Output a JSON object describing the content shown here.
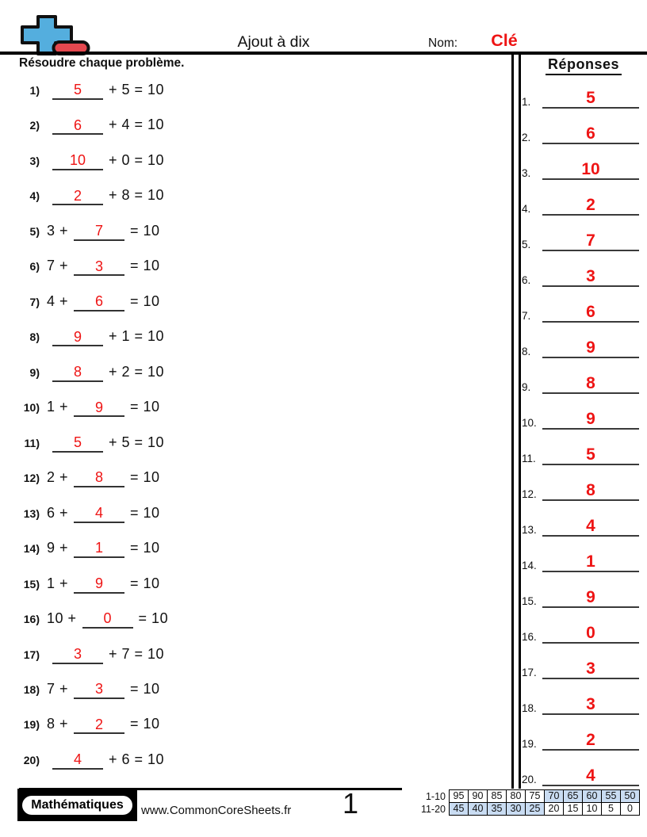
{
  "header": {
    "title": "Ajout à dix",
    "name_label": "Nom:",
    "name_value": "Clé"
  },
  "instruction": "Résoudre chaque problème.",
  "answers_header": "Réponses",
  "problems": [
    {
      "label": "1)",
      "lead": "",
      "answer": "5",
      "tail": "+ 5 = 10"
    },
    {
      "label": "2)",
      "lead": "",
      "answer": "6",
      "tail": "+ 4 = 10"
    },
    {
      "label": "3)",
      "lead": "",
      "answer": "10",
      "tail": "+ 0 = 10"
    },
    {
      "label": "4)",
      "lead": "",
      "answer": "2",
      "tail": "+ 8 = 10"
    },
    {
      "label": "5)",
      "lead": "3 +",
      "answer": "7",
      "tail": "= 10"
    },
    {
      "label": "6)",
      "lead": "7 +",
      "answer": "3",
      "tail": "= 10"
    },
    {
      "label": "7)",
      "lead": "4 +",
      "answer": "6",
      "tail": "= 10"
    },
    {
      "label": "8)",
      "lead": "",
      "answer": "9",
      "tail": "+ 1 = 10"
    },
    {
      "label": "9)",
      "lead": "",
      "answer": "8",
      "tail": "+ 2 = 10"
    },
    {
      "label": "10)",
      "lead": "1 +",
      "answer": "9",
      "tail": "= 10"
    },
    {
      "label": "11)",
      "lead": "",
      "answer": "5",
      "tail": "+ 5 = 10"
    },
    {
      "label": "12)",
      "lead": "2 +",
      "answer": "8",
      "tail": "= 10"
    },
    {
      "label": "13)",
      "lead": "6 +",
      "answer": "4",
      "tail": "= 10"
    },
    {
      "label": "14)",
      "lead": "9 +",
      "answer": "1",
      "tail": "= 10"
    },
    {
      "label": "15)",
      "lead": "1 +",
      "answer": "9",
      "tail": "= 10"
    },
    {
      "label": "16)",
      "lead": "10 +",
      "answer": "0",
      "tail": "= 10"
    },
    {
      "label": "17)",
      "lead": "",
      "answer": "3",
      "tail": "+ 7 = 10"
    },
    {
      "label": "18)",
      "lead": "7 +",
      "answer": "3",
      "tail": "= 10"
    },
    {
      "label": "19)",
      "lead": "8 +",
      "answer": "2",
      "tail": "= 10"
    },
    {
      "label": "20)",
      "lead": "",
      "answer": "4",
      "tail": "+ 6 = 10"
    }
  ],
  "answers": [
    {
      "n": "1.",
      "v": "5"
    },
    {
      "n": "2.",
      "v": "6"
    },
    {
      "n": "3.",
      "v": "10"
    },
    {
      "n": "4.",
      "v": "2"
    },
    {
      "n": "5.",
      "v": "7"
    },
    {
      "n": "6.",
      "v": "3"
    },
    {
      "n": "7.",
      "v": "6"
    },
    {
      "n": "8.",
      "v": "9"
    },
    {
      "n": "9.",
      "v": "8"
    },
    {
      "n": "10.",
      "v": "9"
    },
    {
      "n": "11.",
      "v": "5"
    },
    {
      "n": "12.",
      "v": "8"
    },
    {
      "n": "13.",
      "v": "4"
    },
    {
      "n": "14.",
      "v": "1"
    },
    {
      "n": "15.",
      "v": "9"
    },
    {
      "n": "16.",
      "v": "0"
    },
    {
      "n": "17.",
      "v": "3"
    },
    {
      "n": "18.",
      "v": "3"
    },
    {
      "n": "19.",
      "v": "2"
    },
    {
      "n": "20.",
      "v": "4"
    }
  ],
  "footer": {
    "brand": "Mathématiques",
    "url": "www.CommonCoreSheets.fr",
    "page": "1",
    "grade_table": {
      "labels": [
        "1-10",
        "11-20"
      ],
      "rows": [
        [
          {
            "v": "95",
            "s": 0
          },
          {
            "v": "90",
            "s": 0
          },
          {
            "v": "85",
            "s": 0
          },
          {
            "v": "80",
            "s": 0
          },
          {
            "v": "75",
            "s": 0
          },
          {
            "v": "70",
            "s": 1
          },
          {
            "v": "65",
            "s": 1
          },
          {
            "v": "60",
            "s": 1
          },
          {
            "v": "55",
            "s": 1
          },
          {
            "v": "50",
            "s": 1
          }
        ],
        [
          {
            "v": "45",
            "s": 1
          },
          {
            "v": "40",
            "s": 1
          },
          {
            "v": "35",
            "s": 1
          },
          {
            "v": "30",
            "s": 1
          },
          {
            "v": "25",
            "s": 1
          },
          {
            "v": "20",
            "s": 0
          },
          {
            "v": "15",
            "s": 0
          },
          {
            "v": "10",
            "s": 0
          },
          {
            "v": "5",
            "s": 0
          },
          {
            "v": "0",
            "s": 0
          }
        ]
      ]
    }
  },
  "icons": {
    "logo": "plus-minus-math-icon"
  },
  "colors": {
    "accent_red": "#ee1414",
    "grade_shade": "#c9dcf2",
    "icon_blue": "#54aede",
    "icon_red": "#e5484f"
  }
}
